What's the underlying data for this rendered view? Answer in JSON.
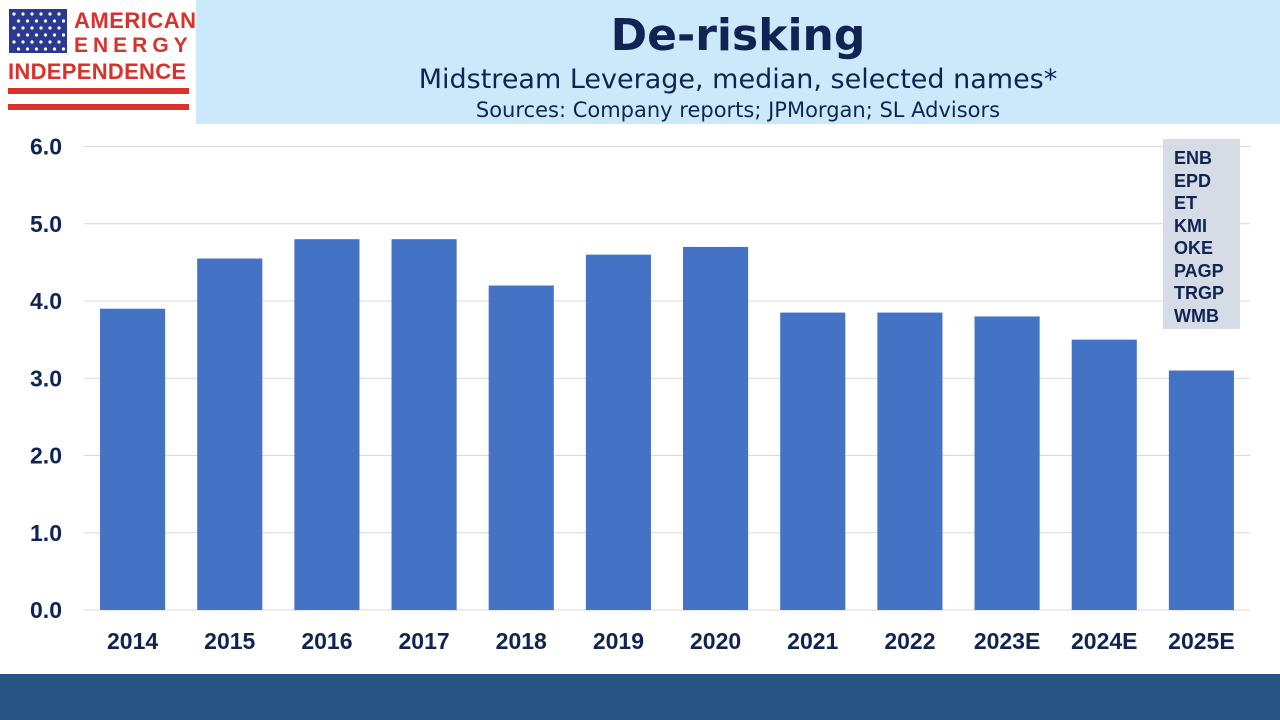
{
  "header": {
    "title": "De-risking",
    "subtitle": "Midstream Leverage, median, selected names*",
    "sources": "Sources: Company reports; JPMorgan; SL Advisors"
  },
  "logo": {
    "line1": "AMERICAN",
    "line2": "ENERGY",
    "line3": "INDEPENDENCE"
  },
  "legend_box": {
    "items": [
      "ENB",
      "EPD",
      "ET",
      "KMI",
      "OKE",
      "PAGP",
      "TRGP",
      "WMB"
    ]
  },
  "colors": {
    "bar": "#4472c4",
    "header_bg": "#cce9fb",
    "text": "#0f2454",
    "footer": "#285485",
    "legend_bg": "#d6dce5",
    "logo_red": "#d9312c",
    "grid": "#d9d9d9"
  },
  "chart_data": {
    "type": "bar",
    "title": "De-risking",
    "subtitle": "Midstream Leverage, median, selected names*",
    "categories": [
      "2014",
      "2015",
      "2016",
      "2017",
      "2018",
      "2019",
      "2020",
      "2021",
      "2022",
      "2023E",
      "2024E",
      "2025E"
    ],
    "values": [
      3.9,
      4.55,
      4.8,
      4.8,
      4.2,
      4.6,
      4.7,
      3.85,
      3.85,
      3.8,
      3.5,
      3.1
    ],
    "yticks": [
      "0.0",
      "1.0",
      "2.0",
      "3.0",
      "4.0",
      "5.0",
      "6.0"
    ],
    "ylim": [
      0,
      6
    ],
    "xlabel": "",
    "ylabel": "",
    "grid": true,
    "legend": "none"
  }
}
